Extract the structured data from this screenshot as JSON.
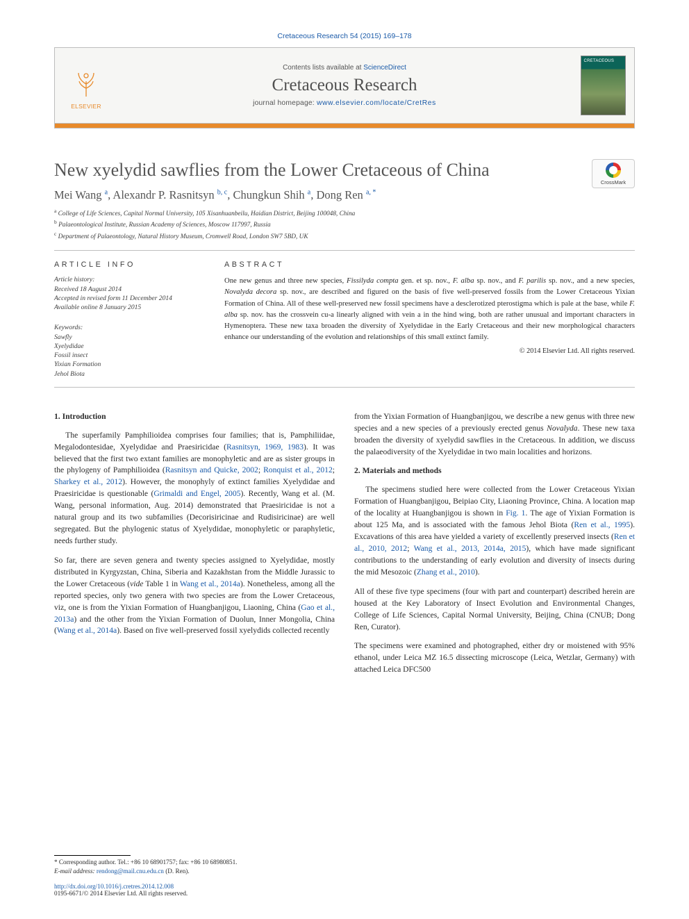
{
  "colors": {
    "link": "#1a5aa8",
    "accent": "#e88a2a",
    "text": "#2b2b2b",
    "muted": "#555555",
    "rule": "#bfbfbf"
  },
  "topCitation": "Cretaceous Research 54 (2015) 169–178",
  "header": {
    "contents_prefix": "Contents lists available at ",
    "contents_link": "ScienceDirect",
    "journal": "Cretaceous Research",
    "home_prefix": "journal homepage: ",
    "home_url": "www.elsevier.com/locate/CretRes",
    "publisher": "ELSEVIER"
  },
  "crossmark": "CrossMark",
  "title": "New xyelydid sawflies from the Lower Cretaceous of China",
  "authors_html": "Mei Wang <sup>a</sup><span class='sep'>, </span>Alexandr P. Rasnitsyn <sup>b, c</sup><span class='sep'>, </span>Chungkun Shih <sup>a</sup><span class='sep'>, </span>Dong Ren <sup>a, *</sup>",
  "affiliations": [
    "a College of Life Sciences, Capital Normal University, 105 Xisanhuanbeilu, Haidian District, Beijing 100048, China",
    "b Palaeontological Institute, Russian Academy of Sciences, Moscow 117997, Russia",
    "c Department of Palaeontology, Natural History Museum, Cromwell Road, London SW7 5BD, UK"
  ],
  "articleinfo_head": "ARTICLE INFO",
  "abstract_head": "ABSTRACT",
  "history": {
    "label": "Article history:",
    "received": "Received 18 August 2014",
    "accepted": "Accepted in revised form 11 December 2014",
    "online": "Available online 8 January 2015"
  },
  "keywords_label": "Keywords:",
  "keywords": [
    "Sawfly",
    "Xyelydidae",
    "Fossil insect",
    "Yixian Formation",
    "Jehol Biota"
  ],
  "abstract_html": "One new genus and three new species, <em>Fissilyda compta</em> gen. et sp. nov., <em>F. alba</em> sp. nov., and <em>F. parilis</em> sp. nov., and a new species, <em>Novalyda decora</em> sp. nov., are described and figured on the basis of five well-preserved fossils from the Lower Cretaceous Yixian Formation of China. All of these well-preserved new fossil specimens have a desclerotized pterostigma which is pale at the base, while <em>F. alba</em> sp. nov. has the crossvein cu-a linearly aligned with vein a in the hind wing, both are rather unusual and important characters in Hymenoptera. These new taxa broaden the diversity of Xyelydidae in the Early Cretaceous and their new morphological characters enhance our understanding of the evolution and relationships of this small extinct family.",
  "copyright": "© 2014 Elsevier Ltd. All rights reserved.",
  "sec1_head": "1. Introduction",
  "sec2_head": "2. Materials and methods",
  "col1": {
    "p1_html": "The superfamily Pamphilioidea comprises four families; that is, Pamphiliidae, Megalodontesidae, Xyelydidae and Praesiricidae (<span class='link'>Rasnitsyn, 1969, 1983</span>). It was believed that the first two extant families are monophyletic and are as sister groups in the phylogeny of Pamphilioidea (<span class='link'>Rasnitsyn and Quicke, 2002</span>; <span class='link'>Ronquist et al., 2012</span>; <span class='link'>Sharkey et al., 2012</span>). However, the monophyly of extinct families Xyelydidae and Praesiricidae is questionable (<span class='link'>Grimaldi and Engel, 2005</span>). Recently, Wang et al. (M. Wang, personal information, Aug. 2014) demonstrated that Praesiricidae is not a natural group and its two subfamilies (Decorisiricinae and Rudisiricinae) are well segregated. But the phylogenic status of Xyelydidae, monophyletic or paraphyletic, needs further study.",
    "p2_html": "So far, there are seven genera and twenty species assigned to Xyelydidae, mostly distributed in Kyrgyzstan, China, Siberia and Kazakhstan from the Middle Jurassic to the Lower Cretaceous (<span class='ital'>vide</span> Table 1 in <span class='link'>Wang et al., 2014a</span>). Nonetheless, among all the reported species, only two genera with two species are from the Lower Cretaceous, viz, one is from the Yixian Formation of Huangbanjigou, Liaoning, China (<span class='link'>Gao et al., 2013a</span>) and the other from the Yixian Formation of Duolun, Inner Mongolia, China (<span class='link'>Wang et al., 2014a</span>). Based on five well-preserved fossil xyelydids collected recently"
  },
  "col2": {
    "p1_html": "from the Yixian Formation of Huangbanjigou, we describe a new genus with three new species and a new species of a previously erected genus <span class='ital'>Novalyda</span>. These new taxa broaden the diversity of xyelydid sawflies in the Cretaceous. In addition, we discuss the palaeodiversity of the Xyelydidae in two main localities and horizons.",
    "p2_html": "The specimens studied here were collected from the Lower Cretaceous Yixian Formation of Huangbanjigou, Beipiao City, Liaoning Province, China. A location map of the locality at Huangbanjigou is shown in <span class='link'>Fig. 1</span>. The age of Yixian Formation is about 125 Ma, and is associated with the famous Jehol Biota (<span class='link'>Ren et al., 1995</span>). Excavations of this area have yielded a variety of excellently preserved insects (<span class='link'>Ren et al., 2010, 2012</span>; <span class='link'>Wang et al., 2013, 2014a, 2015</span>), which have made significant contributions to the understanding of early evolution and diversity of insects during the mid Mesozoic (<span class='link'>Zhang et al., 2010</span>).",
    "p3_html": "All of these five type specimens (four with part and counterpart) described herein are housed at the Key Laboratory of Insect Evolution and Environmental Changes, College of Life Sciences, Capital Normal University, Beijing, China (CNUB; Dong Ren, Curator).",
    "p4_html": "The specimens were examined and photographed, either dry or moistened with 95% ethanol, under Leica MZ 16.5 dissecting microscope (Leica, Wetzlar, Germany) with attached Leica DFC500"
  },
  "footnotes": {
    "corr": "* Corresponding author. Tel.: +86 10 68901757; fax: +86 10 68980851.",
    "email_label": "E-mail address:",
    "email": "rendong@mail.cnu.edu.cn",
    "email_who": "(D. Ren)."
  },
  "footer": {
    "doi": "http://dx.doi.org/10.1016/j.cretres.2014.12.008",
    "issn_line": "0195-6671/© 2014 Elsevier Ltd. All rights reserved."
  }
}
